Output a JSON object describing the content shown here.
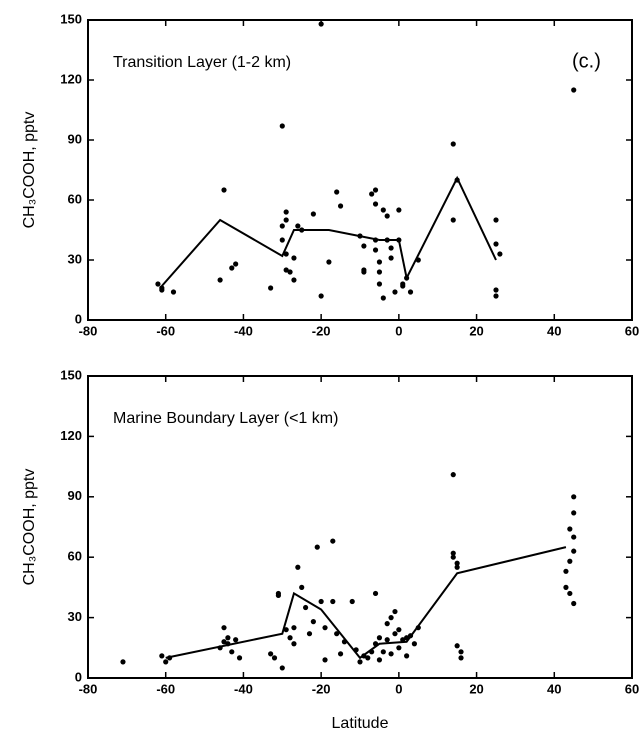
{
  "chart_data": [
    {
      "type": "scatter",
      "title": "Transition Layer (1-2 km)",
      "annotation": "(c.)",
      "y_label": "CH₃COOH, pptv",
      "xlim": [
        -80,
        60
      ],
      "ylim": [
        0,
        150
      ],
      "xticks": [
        -80,
        -60,
        -40,
        -20,
        0,
        20,
        40,
        60
      ],
      "yticks": [
        0,
        30,
        60,
        90,
        120,
        150
      ],
      "points": {
        "x": [
          -62,
          -61,
          -61,
          -58,
          -45,
          -46,
          -43,
          -42,
          -33,
          -30,
          -30,
          -29,
          -29,
          -30,
          -29,
          -29,
          -28,
          -27,
          -27,
          -26,
          -25,
          -22,
          -20,
          -20,
          -18,
          -16,
          -15,
          -10,
          -9,
          -9,
          -9,
          -7,
          -6,
          -6,
          -6,
          -6,
          -5,
          -5,
          -5,
          -4,
          -4,
          -3,
          -3,
          -2,
          -2,
          -1,
          0,
          0,
          1,
          1,
          2,
          3,
          5,
          14,
          15,
          14,
          25,
          25,
          25,
          25,
          26,
          45
        ],
        "y": [
          18,
          16,
          15,
          14,
          65,
          20,
          26,
          28,
          16,
          97,
          47,
          54,
          50,
          40,
          33,
          25,
          24,
          31,
          20,
          47,
          45,
          53,
          12,
          148,
          29,
          64,
          57,
          42,
          37,
          25,
          24,
          63,
          65,
          58,
          40,
          35,
          29,
          24,
          18,
          11,
          55,
          52,
          40,
          36,
          31,
          14,
          40,
          55,
          18,
          17,
          21,
          14,
          30,
          88,
          70,
          50,
          50,
          38,
          15,
          12,
          33,
          115
        ]
      },
      "line": {
        "x": [
          -61,
          -46,
          -30,
          -27,
          -18,
          -5,
          0,
          2,
          15,
          25
        ],
        "y": [
          17,
          50,
          32,
          45,
          45,
          40,
          40,
          21,
          71,
          30
        ]
      }
    },
    {
      "type": "scatter",
      "title": "Marine Boundary Layer (<1 km)",
      "y_label": "CH₃COOH, pptv",
      "x_label": "Latitude",
      "xlim": [
        -80,
        60
      ],
      "ylim": [
        0,
        150
      ],
      "xticks": [
        -80,
        -60,
        -40,
        -20,
        0,
        20,
        40,
        60
      ],
      "yticks": [
        0,
        30,
        60,
        90,
        120,
        150
      ],
      "points": {
        "x": [
          -71,
          -61,
          -60,
          -59,
          -46,
          -45,
          -45,
          -44,
          -44,
          -43,
          -42,
          -41,
          -33,
          -32,
          -31,
          -31,
          -30,
          -29,
          -28,
          -27,
          -27,
          -26,
          -25,
          -24,
          -23,
          -22,
          -21,
          -20,
          -19,
          -19,
          -17,
          -17,
          -16,
          -15,
          -14,
          -12,
          -11,
          -10,
          -9,
          -8,
          -7,
          -6,
          -6,
          -5,
          -5,
          -4,
          -3,
          -3,
          -2,
          -2,
          -1,
          -1,
          0,
          0,
          1,
          2,
          2,
          3,
          4,
          5,
          14,
          14,
          14,
          15,
          15,
          15,
          16,
          16,
          43,
          43,
          44,
          44,
          44,
          45,
          45,
          45,
          45,
          45
        ],
        "y": [
          8,
          11,
          8,
          10,
          15,
          18,
          25,
          20,
          17,
          13,
          19,
          10,
          12,
          10,
          42,
          41,
          5,
          24,
          20,
          25,
          17,
          55,
          45,
          35,
          22,
          28,
          65,
          38,
          25,
          9,
          68,
          38,
          22,
          12,
          18,
          38,
          14,
          8,
          11,
          10,
          13,
          17,
          42,
          20,
          9,
          13,
          27,
          19,
          30,
          12,
          33,
          22,
          15,
          24,
          19,
          11,
          20,
          21,
          17,
          25,
          101,
          62,
          60,
          57,
          55,
          16,
          13,
          10,
          53,
          45,
          58,
          42,
          74,
          82,
          90,
          63,
          70,
          37
        ]
      },
      "line": {
        "x": [
          -60,
          -30,
          -27,
          -20,
          -10,
          -5,
          2,
          15,
          43
        ],
        "y": [
          10,
          22,
          42,
          34,
          10,
          17,
          18,
          52,
          65
        ]
      }
    }
  ]
}
